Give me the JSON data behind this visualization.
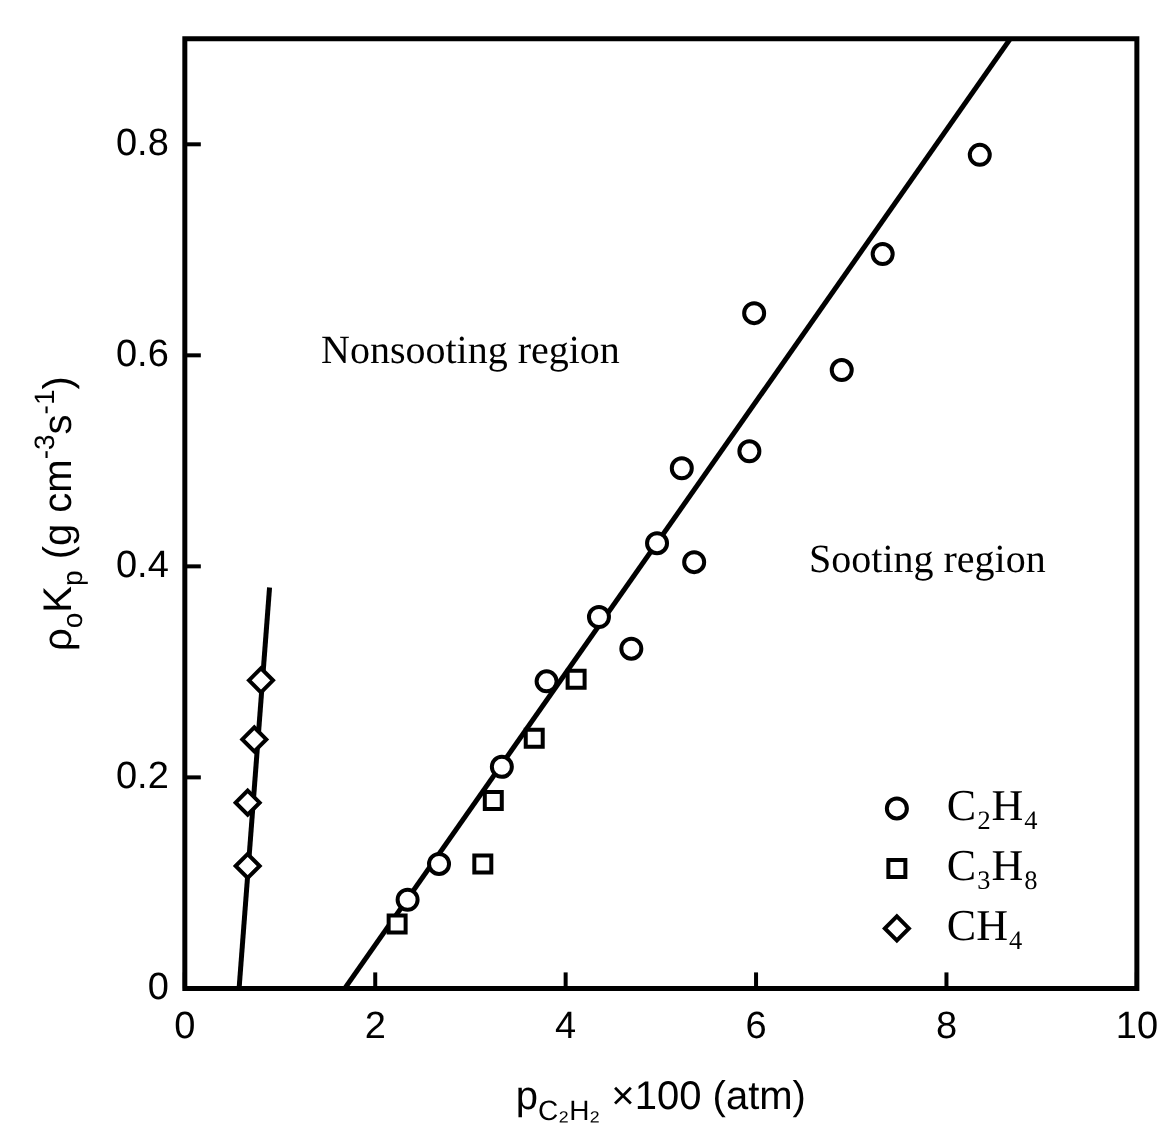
{
  "chart_data": {
    "type": "scatter",
    "xlabel": "p$_{C₂H₂}$ ×100 (atm)",
    "ylabel": "ρ$_{o}$K$_{p}$ (g cm$^{-3}$s$^{-1}$)",
    "xlim": [
      0,
      10
    ],
    "xticks": [
      0,
      2,
      4,
      6,
      8,
      10
    ],
    "ylim": [
      0,
      0.9
    ],
    "yticks": [
      0,
      0.2,
      0.4,
      0.6,
      0.8
    ],
    "grid": false,
    "legend": "bottom right",
    "series": [
      {
        "name": "C₂H₄",
        "color": "#000000",
        "marker": "circle",
        "x": [
          2.34,
          2.67,
          3.33,
          3.8,
          4.35,
          4.69,
          4.96,
          5.22,
          5.35,
          5.93,
          5.98,
          6.9,
          7.33,
          8.35
        ],
        "values": [
          0.084,
          0.118,
          0.21,
          0.291,
          0.352,
          0.322,
          0.422,
          0.493,
          0.404,
          0.509,
          0.64,
          0.586,
          0.696,
          0.79
        ]
      },
      {
        "name": "C₃H₈",
        "color": "#000000",
        "marker": "square",
        "x": [
          2.23,
          3.13,
          3.24,
          3.67,
          4.11
        ],
        "values": [
          0.061,
          0.118,
          0.178,
          0.237,
          0.293
        ]
      },
      {
        "name": "CH₄",
        "color": "#000000",
        "marker": "diamond",
        "x": [
          0.66,
          0.66,
          0.73,
          0.8
        ],
        "values": [
          0.116,
          0.176,
          0.236,
          0.292
        ]
      },
      {
        "type": "line",
        "color": "#000000",
        "marker": "none",
        "x": [
          1.68,
          8.67
        ],
        "values": [
          0,
          0.9
        ]
      },
      {
        "type": "line",
        "color": "#000000",
        "marker": "none",
        "x": [
          0.57,
          0.89
        ],
        "values": [
          0,
          0.38
        ]
      }
    ],
    "annotations": [
      "Nonsooting region",
      "Sooting region"
    ]
  }
}
